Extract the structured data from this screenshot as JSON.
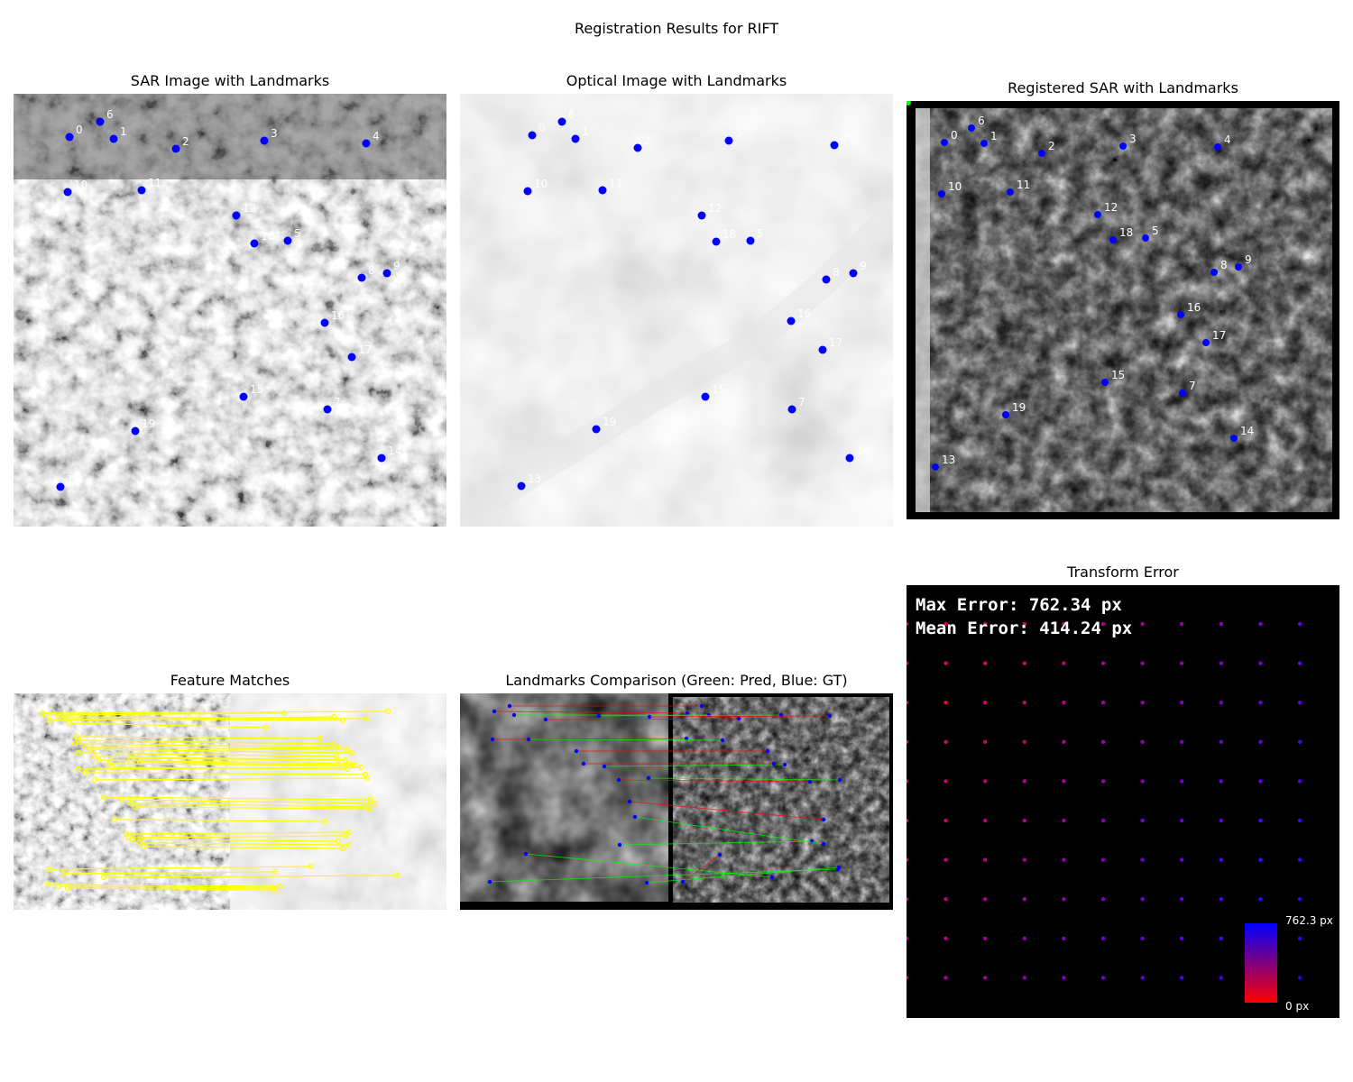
{
  "figure": {
    "title": "Registration Results for RIFT"
  },
  "panels": {
    "sar": {
      "title": "SAR Image with Landmarks"
    },
    "optical": {
      "title": "Optical Image with Landmarks"
    },
    "registered": {
      "title": "Registered SAR with Landmarks"
    },
    "matches": {
      "title": "Feature Matches"
    },
    "comparison": {
      "title": "Landmarks Comparison (Green: Pred, Blue: GT)"
    },
    "error": {
      "title": "Transform Error",
      "max_error": "Max Error: 762.34 px",
      "mean_error": "Mean Error: 414.24 px",
      "colorbar_max": "762.3 px",
      "colorbar_min": "0 px"
    }
  },
  "landmarks": {
    "labels": [
      "0",
      "1",
      "2",
      "3",
      "4",
      "5",
      "6",
      "7",
      "8",
      "9",
      "10",
      "11",
      "12",
      "13",
      "14",
      "15",
      "16",
      "17",
      "18",
      "19"
    ],
    "colors": {
      "gt": "#0000ff",
      "pred": "#00ff00",
      "match": "#ffff00",
      "err_low": "#ff0000",
      "err_high": "#0000ff"
    }
  }
}
